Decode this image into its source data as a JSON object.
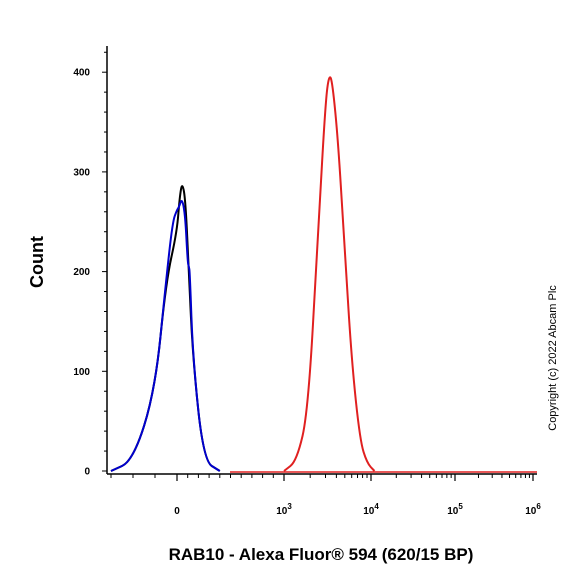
{
  "chart_data": {
    "type": "line",
    "title": "",
    "xlabel": "RAB10 - Alexa Fluor® 594 (620/15 BP)",
    "ylabel": "Count",
    "x_scale": "biexponential (linear near 0, log above 10^3)",
    "ylim": [
      0,
      420
    ],
    "y_ticks": [
      {
        "value": 0,
        "label": "0"
      },
      {
        "value": 100,
        "label": "100"
      },
      {
        "value": 200,
        "label": "200"
      },
      {
        "value": 300,
        "label": "300"
      },
      {
        "value": 400,
        "label": "400"
      }
    ],
    "x_ticks": [
      {
        "value": 0,
        "base": "0",
        "exp": ""
      },
      {
        "value": 1000,
        "base": "10",
        "exp": "3"
      },
      {
        "value": 10000,
        "base": "10",
        "exp": "4"
      },
      {
        "value": 100000,
        "base": "10",
        "exp": "5"
      },
      {
        "value": 1000000,
        "base": "10",
        "exp": "6"
      }
    ],
    "grid": false,
    "legend": "none",
    "series": [
      {
        "color": "#000000",
        "x": [
          -300,
          -200,
          -100,
          -50,
          0,
          25,
          50,
          80,
          110,
          150,
          250,
          400
        ],
        "y": [
          0,
          10,
          80,
          190,
          240,
          275,
          290,
          270,
          200,
          110,
          10,
          0
        ]
      },
      {
        "color": "#0000cc",
        "x": [
          -300,
          -200,
          -100,
          -50,
          -20,
          0,
          20,
          40,
          60,
          80,
          100,
          110,
          120,
          150,
          250,
          400
        ],
        "y": [
          0,
          10,
          80,
          190,
          250,
          262,
          265,
          272,
          268,
          250,
          210,
          205,
          200,
          110,
          10,
          0
        ]
      },
      {
        "color": "#e02020",
        "x": [
          1000,
          1400,
          1900,
          2500,
          3000,
          3300,
          3600,
          4200,
          5000,
          6000,
          7500,
          9000,
          11000
        ],
        "y": [
          0,
          10,
          60,
          250,
          370,
          398,
          390,
          330,
          220,
          110,
          30,
          8,
          0
        ]
      }
    ],
    "annotations": [
      "Copyright (c) 2022 Abcam Plc"
    ]
  }
}
